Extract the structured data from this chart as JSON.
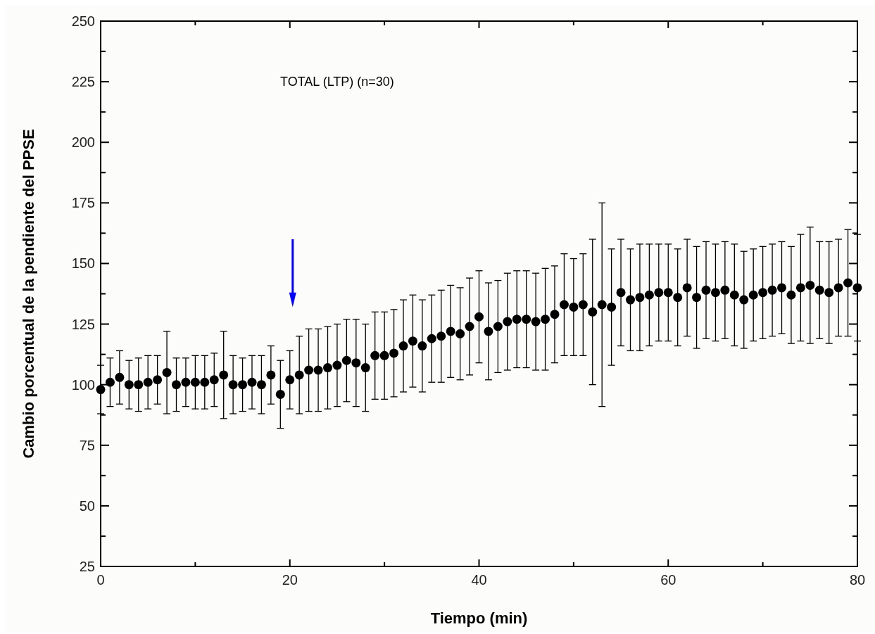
{
  "chart_data": {
    "type": "scatter",
    "title": "TOTAL (LTP) (n=30)",
    "xlabel": "Tiempo (min)",
    "ylabel": "Cambio porcentual de la pendiente del PPSE",
    "x": [
      0,
      1,
      2,
      3,
      4,
      5,
      6,
      7,
      8,
      9,
      10,
      11,
      12,
      13,
      14,
      15,
      16,
      17,
      18,
      19,
      20,
      21,
      22,
      23,
      24,
      25,
      26,
      27,
      28,
      29,
      30,
      31,
      32,
      33,
      34,
      35,
      36,
      37,
      38,
      39,
      40,
      41,
      42,
      43,
      44,
      45,
      46,
      47,
      48,
      49,
      50,
      51,
      52,
      53,
      54,
      55,
      56,
      57,
      58,
      59,
      60,
      61,
      62,
      63,
      64,
      65,
      66,
      67,
      68,
      69,
      70,
      71,
      72,
      73,
      74,
      75,
      76,
      77,
      78,
      79,
      80
    ],
    "series": [
      {
        "color": "#000000",
        "values": [
          98,
          101,
          103,
          100,
          100,
          101,
          102,
          105,
          100,
          101,
          101,
          101,
          102,
          104,
          100,
          100,
          101,
          100,
          104,
          96,
          102,
          104,
          106,
          106,
          107,
          108,
          110,
          109,
          107,
          112,
          112,
          113,
          116,
          118,
          116,
          119,
          120,
          122,
          121,
          124,
          128,
          122,
          124,
          126,
          127,
          127,
          126,
          127,
          129,
          133,
          132,
          133,
          130,
          133,
          132,
          138,
          135,
          136,
          137,
          138,
          138,
          136,
          140,
          136,
          139,
          138,
          139,
          137,
          135,
          137,
          138,
          139,
          140,
          137,
          140,
          141,
          139,
          138,
          140,
          142,
          140
        ],
        "errors": [
          10,
          10,
          11,
          10,
          11,
          11,
          10,
          17,
          11,
          10,
          11,
          11,
          11,
          18,
          12,
          11,
          11,
          12,
          12,
          14,
          12,
          16,
          17,
          17,
          17,
          17,
          17,
          18,
          18,
          18,
          18,
          18,
          19,
          19,
          19,
          18,
          19,
          19,
          19,
          20,
          19,
          20,
          19,
          20,
          20,
          20,
          20,
          21,
          20,
          21,
          20,
          21,
          30,
          42,
          24,
          22,
          21,
          22,
          21,
          20,
          20,
          20,
          20,
          21,
          20,
          20,
          20,
          21,
          20,
          19,
          19,
          19,
          19,
          20,
          22,
          24,
          20,
          21,
          20,
          22,
          22
        ]
      }
    ],
    "xlim": [
      0,
      80
    ],
    "ylim": [
      25,
      250
    ],
    "xticks": [
      0,
      {
        "value": 10,
        "label": null
      },
      20,
      {
        "value": 30,
        "label": null
      },
      40,
      {
        "value": 50,
        "label": null
      },
      60,
      {
        "value": 70,
        "label": null
      },
      80
    ],
    "yticks": [
      25,
      {
        "value": 37.5,
        "label": null
      },
      50,
      {
        "value": 62.5,
        "label": null
      },
      75,
      {
        "value": 87.5,
        "label": null
      },
      100,
      {
        "value": 112.5,
        "label": null
      },
      125,
      {
        "value": 137.5,
        "label": null
      },
      150,
      {
        "value": 162.5,
        "label": null
      },
      175,
      {
        "value": 187.5,
        "label": null
      },
      200,
      {
        "value": 212.5,
        "label": null
      },
      225,
      {
        "value": 237.5,
        "label": null
      },
      250
    ],
    "marker": "circle",
    "grid": false
  }
}
